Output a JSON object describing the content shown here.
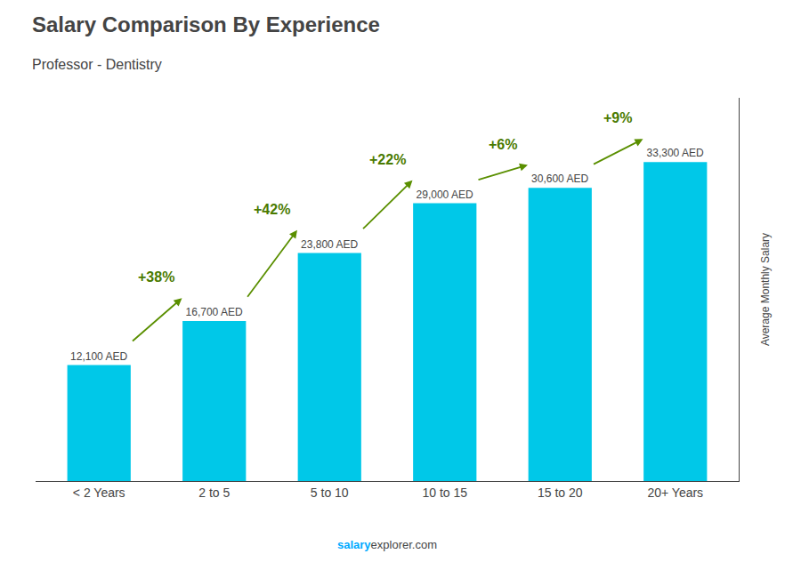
{
  "chart_data": {
    "type": "bar",
    "title": "Salary Comparison By Experience",
    "subtitle": "Professor - Dentistry",
    "ylabel": "Average Monthly Salary",
    "categories": [
      "< 2 Years",
      "2 to 5",
      "5 to 10",
      "10 to 15",
      "15 to 20",
      "20+ Years"
    ],
    "values": [
      12100,
      16700,
      23800,
      29000,
      30600,
      33300
    ],
    "value_labels": [
      "12,100 AED",
      "16,700 AED",
      "23,800 AED",
      "29,000 AED",
      "30,600 AED",
      "33,300 AED"
    ],
    "annotations": [
      "+38%",
      "+42%",
      "+22%",
      "+6%",
      "+9%"
    ],
    "watermark": [
      "salary",
      "explorer.com"
    ],
    "color": "#00c8e8",
    "ylim": [
      0,
      40000
    ],
    "yticks": [],
    "tick_labels": "x",
    "grid": false,
    "data_labels": true
  }
}
